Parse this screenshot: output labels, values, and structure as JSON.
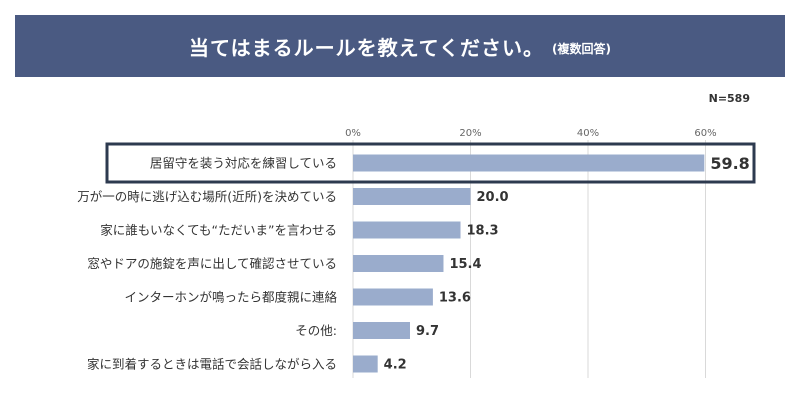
{
  "title": {
    "main": "当てはまるルールを教えてください。",
    "sub": "(複数回答)"
  },
  "sample_size": "N=589",
  "colors": {
    "banner": "#4a5a82",
    "bar": "#9aaccc",
    "grid": "#d9d9d9",
    "highlight_border": "#2d3a4f"
  },
  "chart_data": {
    "type": "bar",
    "orientation": "horizontal",
    "title": "当てはまるルールを教えてください。",
    "xlabel": "",
    "ylabel": "",
    "xlim": [
      0,
      70
    ],
    "x_ticks": [
      0,
      20,
      40,
      60
    ],
    "x_tick_labels": [
      "0%",
      "20%",
      "40%",
      "60%"
    ],
    "grid": true,
    "categories": [
      "居留守を装う対応を練習している",
      "万が一の時に逃げ込む場所(近所)を決めている",
      "家に誰もいなくても“ただいま”を言わせる",
      "窓やドアの施錠を声に出して確認させている",
      "インターホンが鳴ったら都度親に連絡",
      "その他:",
      "家に到着するときは電話で会話しながら入る"
    ],
    "values": [
      59.8,
      20.0,
      18.3,
      15.4,
      13.6,
      9.7,
      4.2
    ],
    "value_labels": [
      "59.8",
      "20.0",
      "18.3",
      "15.4",
      "13.6",
      "9.7",
      "4.2"
    ],
    "highlighted_index": 0
  }
}
